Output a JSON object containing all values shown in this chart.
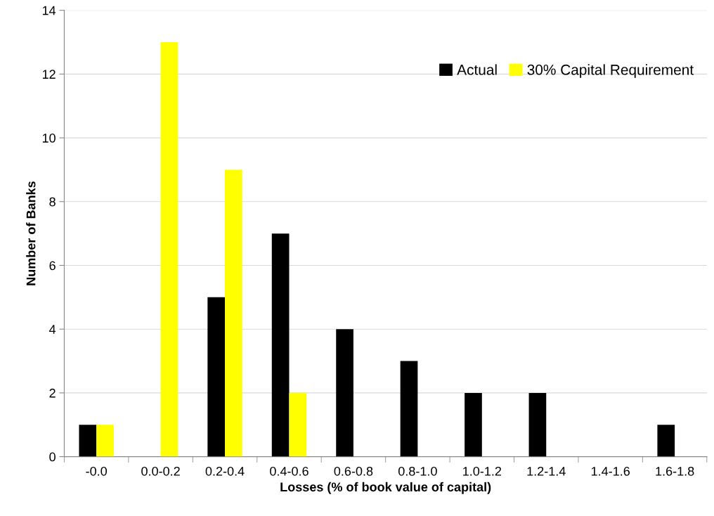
{
  "chart_data": {
    "type": "bar",
    "xlabel": "Losses (% of book value of capital)",
    "ylabel": "Number of Banks",
    "categories": [
      "-0.0",
      "0.0-0.2",
      "0.2-0.4",
      "0.4-0.6",
      "0.6-0.8",
      "0.8-1.0",
      "1.0-1.2",
      "1.2-1.4",
      "1.4-1.6",
      "1.6-1.8"
    ],
    "series": [
      {
        "name": "Actual",
        "color": "#000000",
        "values": [
          1,
          0,
          5,
          7,
          4,
          3,
          2,
          2,
          0,
          1
        ]
      },
      {
        "name": "30% Capital Requirement",
        "color": "#ffff00",
        "values": [
          1,
          13,
          9,
          2,
          0,
          0,
          0,
          0,
          0,
          0
        ]
      }
    ],
    "ylim": [
      0,
      14
    ],
    "yticks": [
      0,
      2,
      4,
      6,
      8,
      10,
      12,
      14
    ],
    "grid": "y",
    "legend": "top right"
  }
}
